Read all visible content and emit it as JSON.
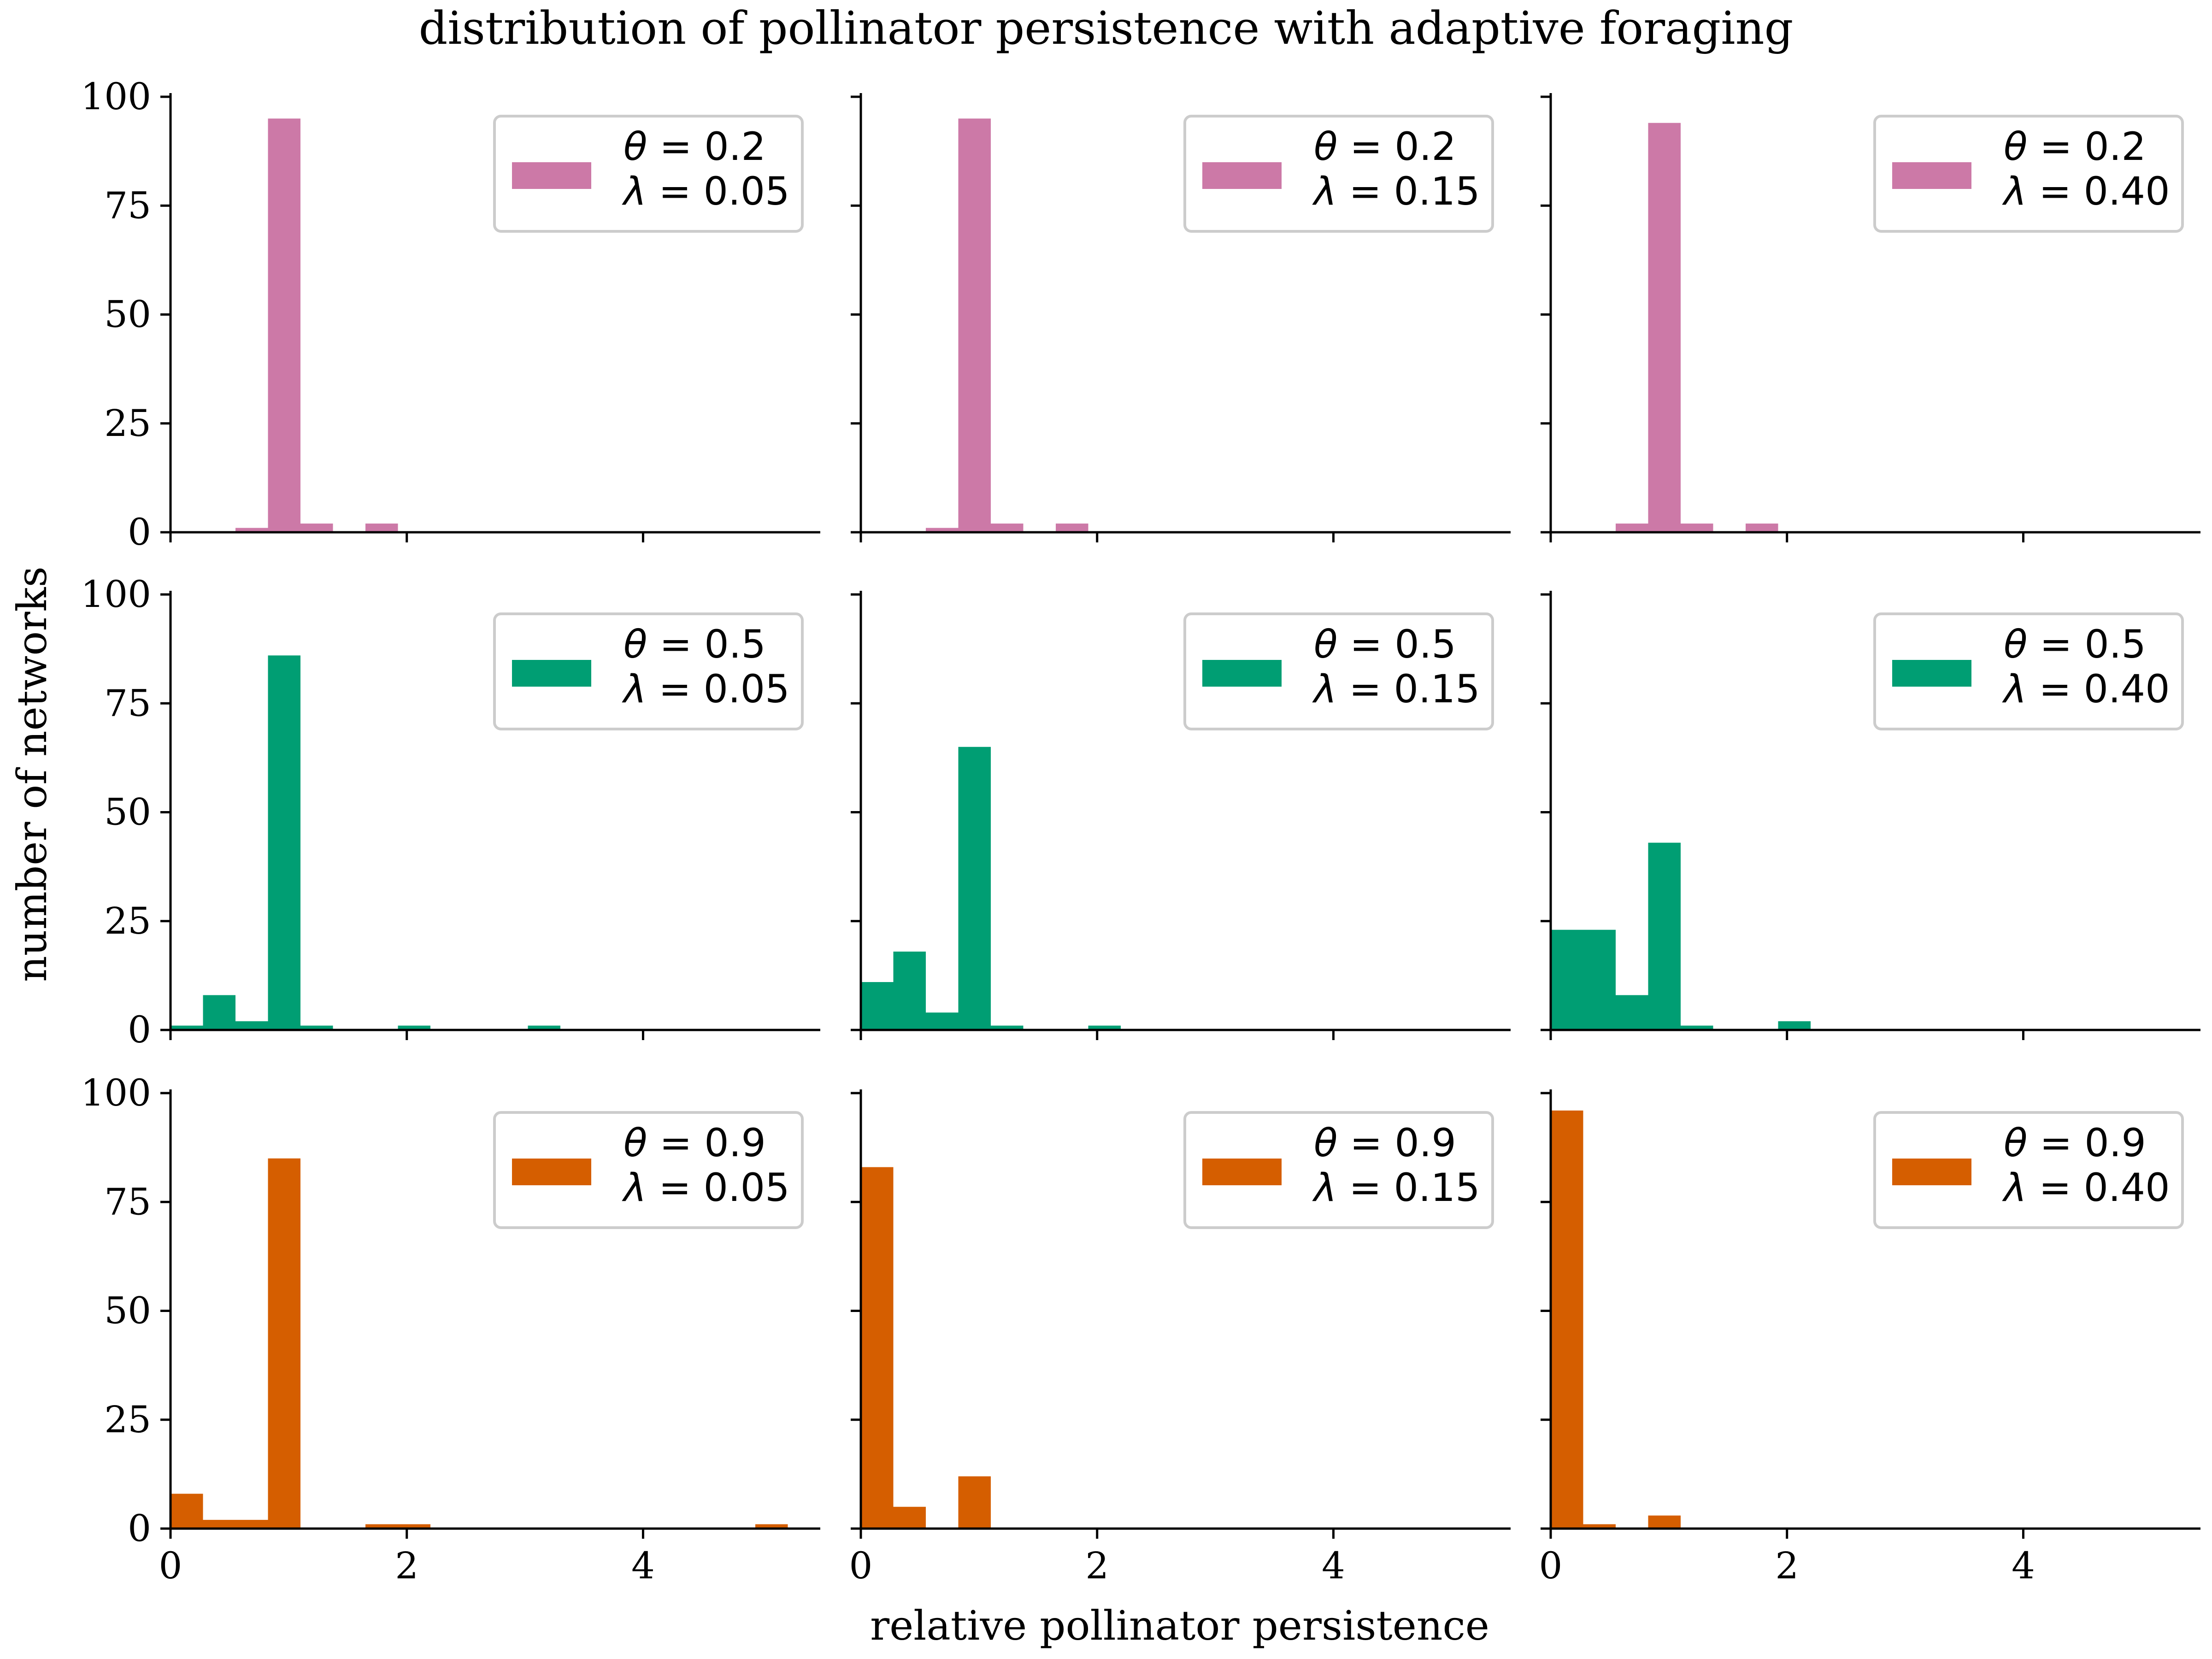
{
  "figure": {
    "title": "distribution of pollinator persistence with adaptive foraging",
    "xlabel": "relative pollinator persistence",
    "ylabel": "number of networks"
  },
  "chart_data": {
    "type": "bar",
    "layout": "3x3 grid of histograms, shared x and y axes",
    "bin_edges": [
      0,
      0.275,
      0.55,
      0.825,
      1.1,
      1.375,
      1.65,
      1.925,
      2.2,
      2.475,
      2.75,
      3.025,
      3.3,
      3.575,
      3.85,
      4.125,
      4.4,
      4.675,
      4.95,
      5.225
    ],
    "xlim": [
      0,
      5.5
    ],
    "ylim": [
      0,
      100
    ],
    "xticks": [
      0,
      2,
      4
    ],
    "yticks": [
      0,
      25,
      50,
      75,
      100
    ],
    "grid": false,
    "legend_placement": "upper right",
    "colors": {
      "theta_0.2": "#cc79a7",
      "theta_0.5": "#009e73",
      "theta_0.9": "#d55e00"
    },
    "panels": [
      {
        "row": 0,
        "col": 0,
        "theta": "0.2",
        "lambda": "0.05",
        "color": "#cc79a7",
        "counts": [
          0,
          0,
          1,
          95,
          2,
          0,
          2,
          0,
          0,
          0,
          0,
          0,
          0,
          0,
          0,
          0,
          0,
          0,
          0
        ]
      },
      {
        "row": 0,
        "col": 1,
        "theta": "0.2",
        "lambda": "0.15",
        "color": "#cc79a7",
        "counts": [
          0,
          0,
          1,
          95,
          2,
          0,
          2,
          0,
          0,
          0,
          0,
          0,
          0,
          0,
          0,
          0,
          0,
          0,
          0
        ]
      },
      {
        "row": 0,
        "col": 2,
        "theta": "0.2",
        "lambda": "0.40",
        "color": "#cc79a7",
        "counts": [
          0,
          0,
          2,
          94,
          2,
          0,
          2,
          0,
          0,
          0,
          0,
          0,
          0,
          0,
          0,
          0,
          0,
          0,
          0
        ]
      },
      {
        "row": 1,
        "col": 0,
        "theta": "0.5",
        "lambda": "0.05",
        "color": "#009e73",
        "counts": [
          1,
          8,
          2,
          86,
          1,
          0,
          0,
          1,
          0,
          0,
          0,
          1,
          0,
          0,
          0,
          0,
          0,
          0,
          0
        ]
      },
      {
        "row": 1,
        "col": 1,
        "theta": "0.5",
        "lambda": "0.15",
        "color": "#009e73",
        "counts": [
          11,
          18,
          4,
          65,
          1,
          0,
          0,
          1,
          0,
          0,
          0,
          0,
          0,
          0,
          0,
          0,
          0,
          0,
          0
        ]
      },
      {
        "row": 1,
        "col": 2,
        "theta": "0.5",
        "lambda": "0.40",
        "color": "#009e73",
        "counts": [
          23,
          23,
          8,
          43,
          1,
          0,
          0,
          2,
          0,
          0,
          0,
          0,
          0,
          0,
          0,
          0,
          0,
          0,
          0
        ]
      },
      {
        "row": 2,
        "col": 0,
        "theta": "0.9",
        "lambda": "0.05",
        "color": "#d55e00",
        "counts": [
          8,
          2,
          2,
          85,
          0,
          0,
          1,
          1,
          0,
          0,
          0,
          0,
          0,
          0,
          0,
          0,
          0,
          0,
          1
        ]
      },
      {
        "row": 2,
        "col": 1,
        "theta": "0.9",
        "lambda": "0.15",
        "color": "#d55e00",
        "counts": [
          83,
          5,
          0,
          12,
          0,
          0,
          0,
          0,
          0,
          0,
          0,
          0,
          0,
          0,
          0,
          0,
          0,
          0,
          0
        ]
      },
      {
        "row": 2,
        "col": 2,
        "theta": "0.9",
        "lambda": "0.40",
        "color": "#d55e00",
        "counts": [
          96,
          1,
          0,
          3,
          0,
          0,
          0,
          0,
          0,
          0,
          0,
          0,
          0,
          0,
          0,
          0,
          0,
          0,
          0
        ]
      }
    ]
  }
}
